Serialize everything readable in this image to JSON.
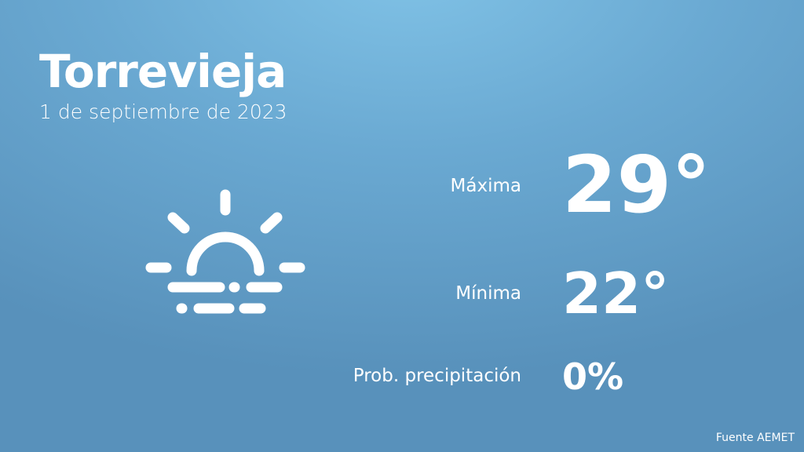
{
  "city": "Torrevieja",
  "date": "1 de septiembre de 2023",
  "weather_icon": "sun-rising-fog-icon",
  "max": {
    "label": "Máxima",
    "value": "29°"
  },
  "min": {
    "label": "Mínima",
    "value": "22°"
  },
  "precip": {
    "label": "Prob. precipitación",
    "value": "0%"
  },
  "source": "Fuente AEMET"
}
